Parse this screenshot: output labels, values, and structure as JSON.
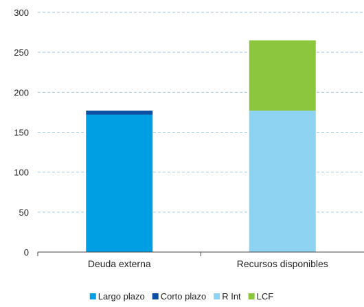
{
  "chart_data": {
    "type": "bar",
    "stacked": true,
    "categories": [
      "Deuda externa",
      "Recursos disponibles"
    ],
    "series": [
      {
        "name": "Largo plazo",
        "values": [
          172,
          0
        ],
        "color": "#009FE3"
      },
      {
        "name": "Corto plazo",
        "values": [
          5,
          0
        ],
        "color": "#0B4EA2"
      },
      {
        "name": "R Int",
        "values": [
          0,
          177
        ],
        "color": "#8ED3F2"
      },
      {
        "name": "LCF",
        "values": [
          0,
          88
        ],
        "color": "#8CC63F"
      }
    ],
    "ylim": [
      0,
      300
    ],
    "yticks": [
      "0",
      "50",
      "100",
      "150",
      "200",
      "250",
      "300"
    ],
    "grid": true,
    "gridline_style": "dashed",
    "legend": "bottom",
    "title": "",
    "xlabel": "",
    "ylabel": ""
  }
}
